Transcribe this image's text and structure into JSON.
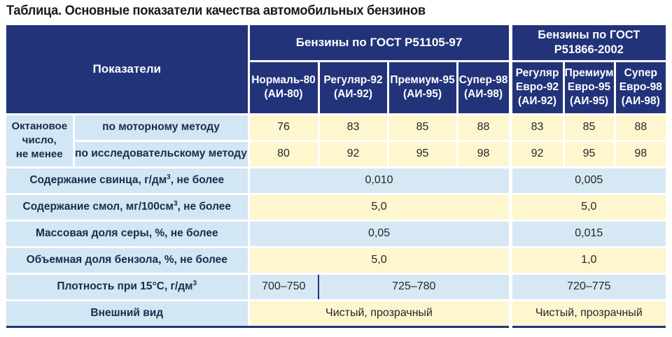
{
  "title": "Таблица. Основные показатели качества автомобильных бензинов",
  "header": {
    "indicators_label": "Показатели",
    "group1": "Бензины по ГОСТ Р51105-97",
    "group2_line1": "Бензины по ГОСТ",
    "group2_line2": "Р51866-2002",
    "fuels": [
      {
        "line1": "Нормаль-80",
        "line2": "(АИ-80)"
      },
      {
        "line1": "Регуляр-92",
        "line2": "(АИ-92)"
      },
      {
        "line1": "Премиум-95",
        "line2": "(АИ-95)"
      },
      {
        "line1": "Супер-98",
        "line2": "(АИ-98)"
      }
    ],
    "euro_fuels": [
      {
        "line1": "Регуляр",
        "line2": "Евро-92",
        "line3": "(АИ-92)"
      },
      {
        "line1": "Премиум",
        "line2": "Евро-95",
        "line3": "(АИ-95)"
      },
      {
        "line1": "Супер",
        "line2": "Евро-98",
        "line3": "(АИ-98)"
      }
    ]
  },
  "octane": {
    "label_line1": "Октановое",
    "label_line2": "число,",
    "label_line3": "не менее",
    "motor": {
      "label": "по моторному методу",
      "values": [
        "76",
        "83",
        "85",
        "88",
        "83",
        "85",
        "88"
      ]
    },
    "research": {
      "label": "по исследовательскому методу",
      "values": [
        "80",
        "92",
        "95",
        "98",
        "92",
        "95",
        "98"
      ]
    }
  },
  "rows": {
    "lead": {
      "label": "Содержание свинца, г/дм",
      "sup": "3",
      "suffix": ", не более",
      "group1": "0,010",
      "group2": "0,005"
    },
    "resin": {
      "label": "Содержание смол, мг/100см",
      "sup": "3",
      "suffix": ", не более",
      "group1": "5,0",
      "group2": "5,0"
    },
    "sulfur": {
      "label": "Массовая доля серы, %, не более",
      "group1": "0,05",
      "group2": "0,015"
    },
    "benzene": {
      "label": "Объемная доля бензола, %, не более",
      "group1": "5,0",
      "group2": "1,0"
    },
    "density": {
      "label": "Плотность при 15°С, г/дм",
      "sup": "3",
      "v80": "700–750",
      "group1_rest": "725–780",
      "group2": "720–775"
    },
    "appearance": {
      "label": "Внешний вид",
      "group1": "Чистый, прозрачный",
      "group2": "Чистый, прозрачный"
    }
  },
  "colors": {
    "header_bg": "#22337a",
    "label_bg": "#d2e6f4",
    "yellow_row": "#fdf6cf",
    "blue_row": "#d6e8f4"
  }
}
